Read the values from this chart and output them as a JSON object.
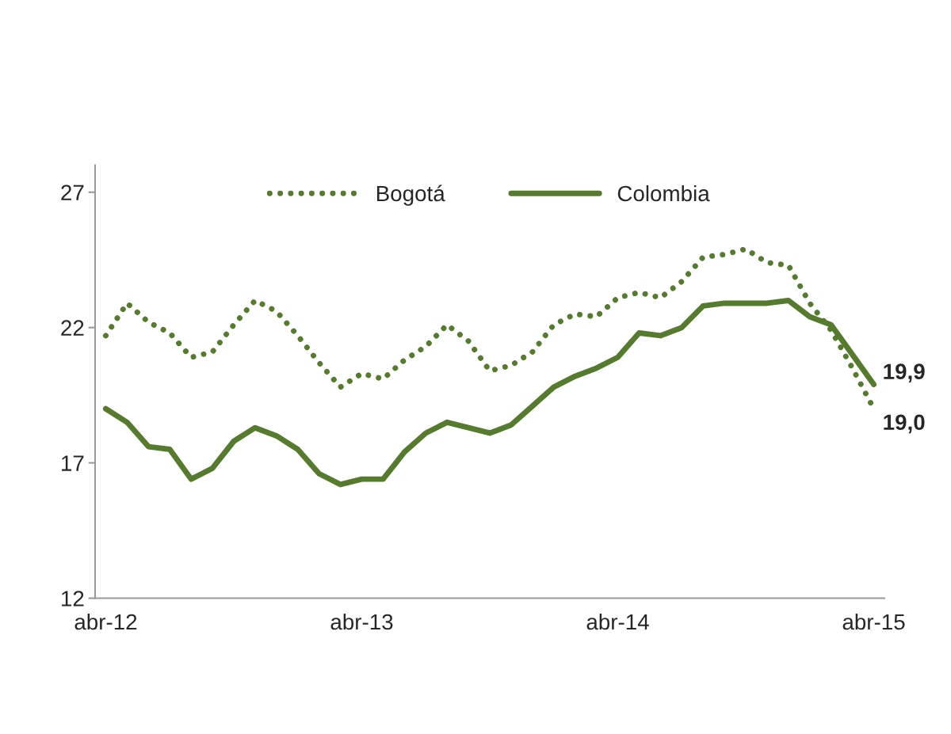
{
  "chart_data": {
    "type": "line",
    "categories": [
      "abr-12",
      null,
      null,
      null,
      null,
      null,
      null,
      null,
      null,
      null,
      null,
      null,
      "abr-13",
      null,
      null,
      null,
      null,
      null,
      null,
      null,
      null,
      null,
      null,
      null,
      "abr-14",
      null,
      null,
      null,
      null,
      null,
      null,
      null,
      null,
      null,
      null,
      null,
      "abr-15"
    ],
    "series": [
      {
        "name": "Bogotá",
        "color": "#567a2e",
        "line_style": "dotted",
        "values": [
          21.7,
          22.9,
          22.2,
          21.8,
          20.9,
          21.1,
          22.1,
          23.0,
          22.6,
          21.7,
          20.7,
          19.8,
          20.3,
          20.1,
          20.8,
          21.3,
          22.1,
          21.5,
          20.4,
          20.6,
          21.1,
          22.1,
          22.5,
          22.4,
          23.1,
          23.3,
          23.1,
          23.7,
          24.6,
          24.7,
          24.9,
          24.4,
          24.3,
          22.9,
          21.9,
          20.5,
          19.0
        ],
        "value_labels": [
          null,
          null,
          null,
          null,
          null,
          null,
          null,
          null,
          null,
          null,
          null,
          null,
          null,
          null,
          null,
          null,
          null,
          null,
          null,
          null,
          null,
          null,
          null,
          null,
          null,
          null,
          null,
          null,
          null,
          null,
          null,
          null,
          null,
          null,
          null,
          null,
          "19,0"
        ]
      },
      {
        "name": "Colombia",
        "color": "#567a2e",
        "line_style": "solid",
        "values": [
          19.0,
          18.5,
          17.6,
          17.5,
          16.4,
          16.8,
          17.8,
          18.3,
          18.0,
          17.5,
          16.6,
          16.2,
          16.4,
          16.4,
          17.4,
          18.1,
          18.5,
          18.3,
          18.1,
          18.4,
          19.1,
          19.8,
          20.2,
          20.5,
          20.9,
          21.8,
          21.7,
          22.0,
          22.8,
          22.9,
          22.9,
          22.9,
          23.0,
          22.4,
          22.1,
          21.0,
          19.9
        ],
        "value_labels": [
          null,
          null,
          null,
          null,
          null,
          null,
          null,
          null,
          null,
          null,
          null,
          null,
          null,
          null,
          null,
          null,
          null,
          null,
          null,
          null,
          null,
          null,
          null,
          null,
          null,
          null,
          null,
          null,
          null,
          null,
          null,
          null,
          null,
          null,
          null,
          null,
          "19,9"
        ]
      }
    ],
    "ylim": [
      12,
      28
    ],
    "yticks": [
      12,
      17,
      22,
      27
    ],
    "grid": false,
    "legend": "top"
  }
}
